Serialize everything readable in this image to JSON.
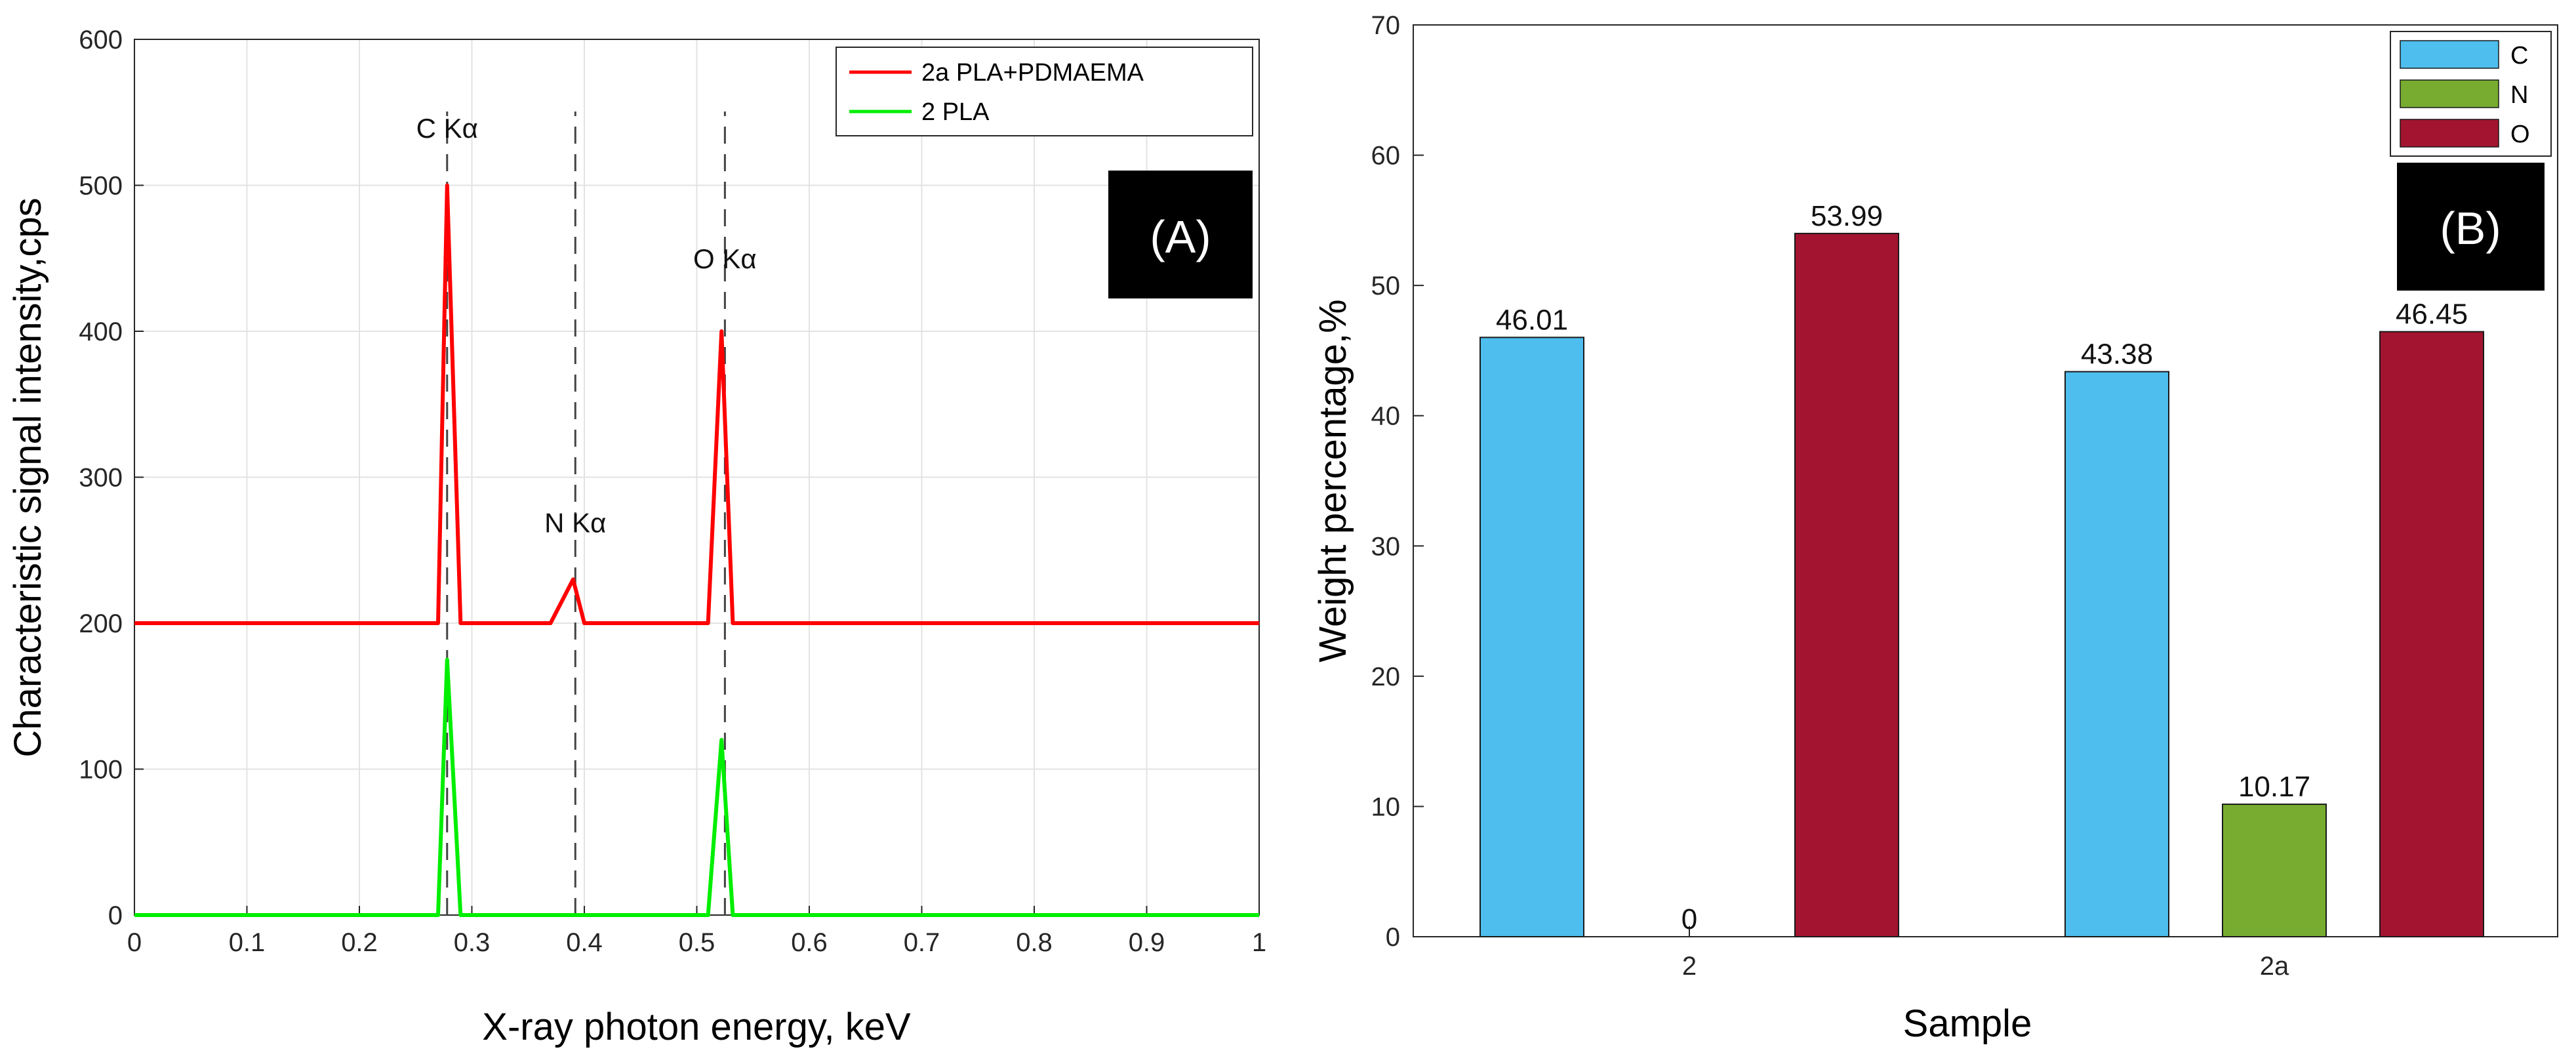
{
  "chart_data": [
    {
      "panel": "(A)",
      "type": "line",
      "title": "",
      "xlabel": "X-ray photon energy, keV",
      "ylabel": "Characteristic signal intensity,cps",
      "xlim": [
        0,
        1
      ],
      "ylim": [
        0,
        600
      ],
      "xticks": [
        "0",
        "0.1",
        "0.2",
        "0.3",
        "0.4",
        "0.5",
        "0.6",
        "0.7",
        "0.8",
        "0.9",
        "1"
      ],
      "yticks": [
        "0",
        "100",
        "200",
        "300",
        "400",
        "500",
        "600"
      ],
      "grid": true,
      "legend_position": "top-right",
      "series": [
        {
          "name": "2a PLA+PDMAEMA",
          "color": "#ff0000",
          "x": [
            0,
            0.27,
            0.278,
            0.29,
            0.37,
            0.39,
            0.4,
            0.51,
            0.522,
            0.532,
            1
          ],
          "y": [
            200,
            200,
            500,
            200,
            200,
            230,
            200,
            200,
            400,
            200,
            200
          ]
        },
        {
          "name": "2 PLA",
          "color": "#00ee00",
          "x": [
            0,
            0.27,
            0.278,
            0.29,
            0.51,
            0.522,
            0.532,
            1
          ],
          "y": [
            0,
            0,
            175,
            0,
            0,
            120,
            0,
            0
          ]
        }
      ],
      "annotations": [
        {
          "text": "C  Kα",
          "x": 0.278
        },
        {
          "text": "N  Kα",
          "x": 0.392
        },
        {
          "text": "O  Kα",
          "x": 0.525
        }
      ]
    },
    {
      "panel": "(B)",
      "type": "bar",
      "title": "",
      "xlabel": "Sample",
      "ylabel": "Weight percentage,%",
      "categories": [
        "2",
        "2a"
      ],
      "ylim": [
        0,
        70
      ],
      "yticks": [
        "0",
        "10",
        "20",
        "30",
        "40",
        "50",
        "60",
        "70"
      ],
      "grid": false,
      "legend_position": "top-right",
      "series": [
        {
          "name": "C",
          "color": "#4dbeee",
          "values": [
            46.01,
            43.38
          ],
          "labels": [
            "46.01",
            "43.38"
          ]
        },
        {
          "name": "N",
          "color": "#77ac30",
          "values": [
            0,
            10.17
          ],
          "labels": [
            "0",
            "10.17"
          ]
        },
        {
          "name": "O",
          "color": "#a2142f",
          "values": [
            53.99,
            46.45
          ],
          "labels": [
            "53.99",
            "46.45"
          ]
        }
      ]
    }
  ]
}
